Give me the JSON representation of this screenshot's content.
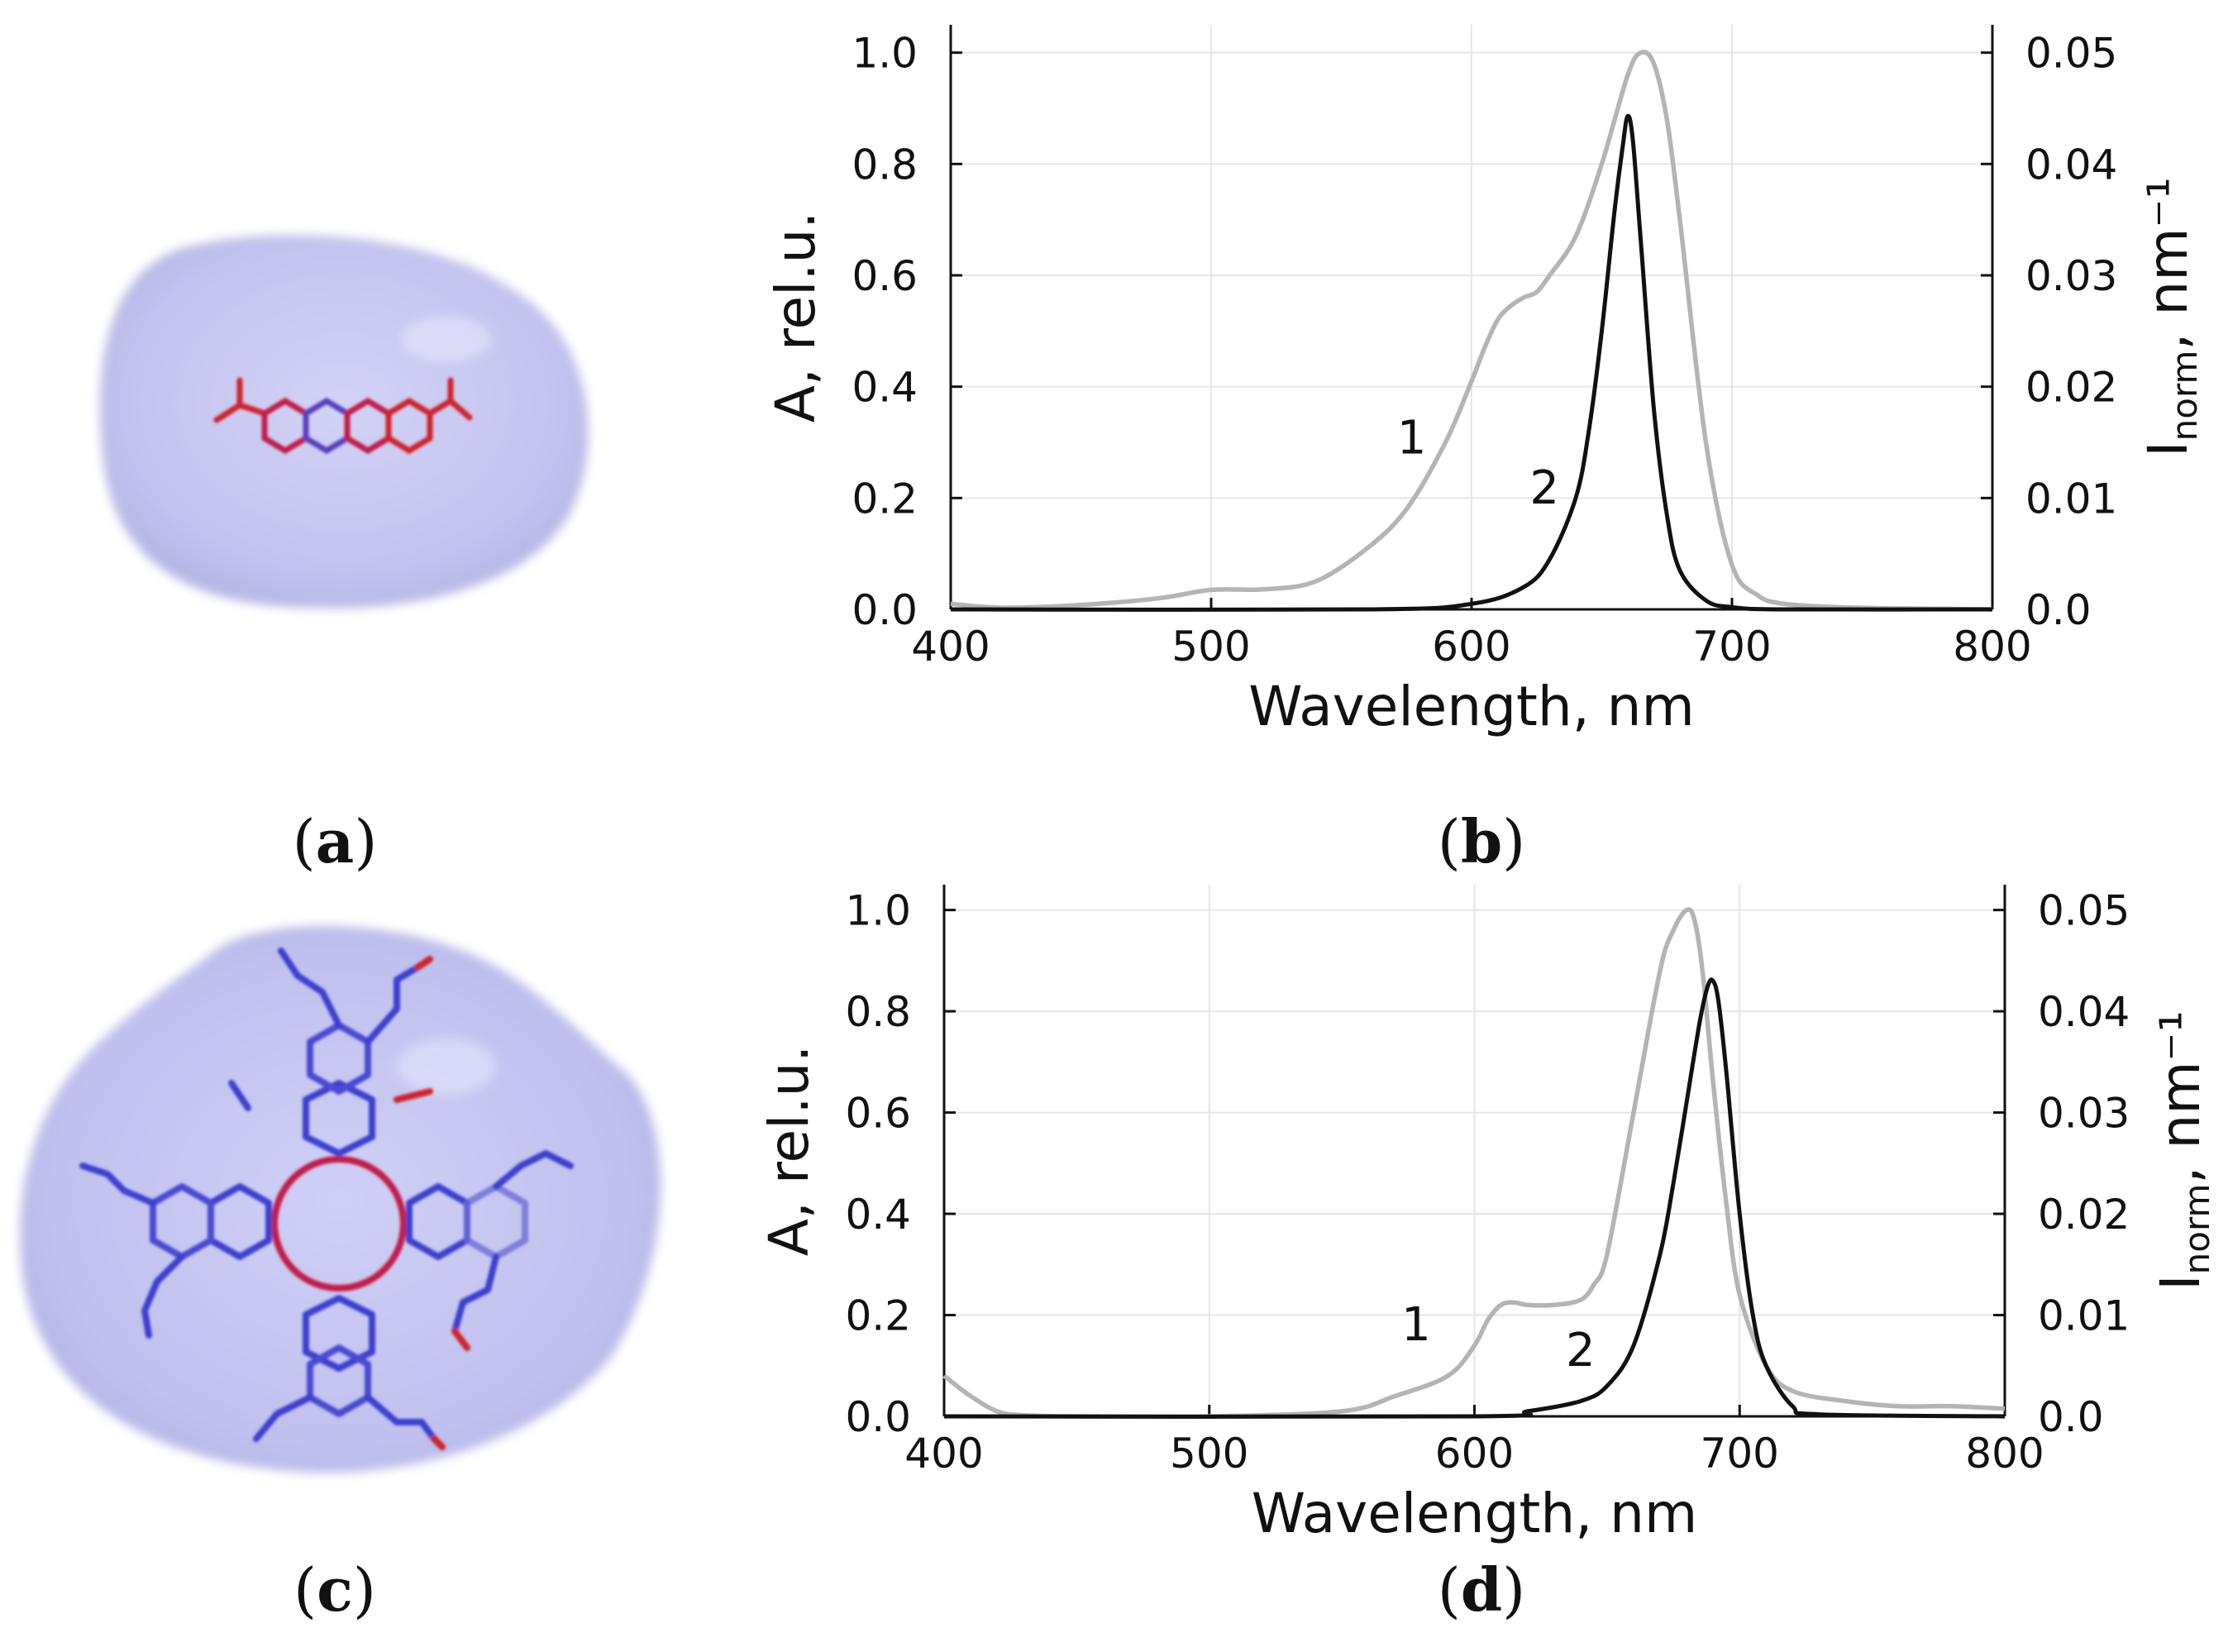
{
  "figure_labels": {
    "a": {
      "open": "(",
      "letter": "a",
      "close": ")"
    },
    "b": {
      "open": "(",
      "letter": "b",
      "close": ")"
    },
    "c": {
      "open": "(",
      "letter": "c",
      "close": ")"
    },
    "d": {
      "open": "(",
      "letter": "d",
      "close": ")"
    }
  },
  "colors": {
    "absorption": "#b4b4b4",
    "fluorescence": "#111111",
    "cloud": "#c9c9f2",
    "bond_blue": "#3d3fd0",
    "bond_red": "#d1202b"
  },
  "chart_data": [
    {
      "id": "b",
      "type": "line",
      "xlabel": "Wavelength, nm",
      "ylabel": "A, rel.u.",
      "y2label_main": "I",
      "y2label_sub": "norm",
      "y2label_tail": ", nm⁻¹",
      "xlim": [
        400,
        800
      ],
      "ylim": [
        0,
        1.05
      ],
      "y2lim": [
        0,
        0.0525
      ],
      "xticks": [
        400,
        500,
        600,
        700,
        800
      ],
      "yticks": [
        0.0,
        0.2,
        0.4,
        0.6,
        0.8,
        1.0
      ],
      "y2ticks": [
        0.0,
        0.01,
        0.02,
        0.03,
        0.04,
        0.05
      ],
      "xtick_labels": [
        "400",
        "500",
        "600",
        "700",
        "800"
      ],
      "ytick_labels": [
        "0.0",
        "0.2",
        "0.4",
        "0.6",
        "0.8",
        "1.0"
      ],
      "y2tick_labels": [
        "0.0",
        "0.01",
        "0.02",
        "0.03",
        "0.04",
        "0.05"
      ],
      "grid": true,
      "series": [
        {
          "label": "1",
          "axis": "left",
          "color": "#b4b4b4",
          "x": [
            400,
            420,
            450,
            480,
            500,
            520,
            540,
            560,
            575,
            590,
            600,
            605,
            610,
            615,
            620,
            625,
            630,
            640,
            650,
            660,
            665,
            670,
            675,
            680,
            690,
            700,
            710,
            720,
            740,
            760,
            800
          ],
          "y": [
            0.01,
            0.003,
            0.008,
            0.02,
            0.035,
            0.036,
            0.05,
            0.11,
            0.18,
            0.3,
            0.41,
            0.47,
            0.52,
            0.545,
            0.56,
            0.57,
            0.6,
            0.67,
            0.8,
            0.96,
            1.0,
            0.98,
            0.88,
            0.7,
            0.3,
            0.08,
            0.025,
            0.01,
            0.004,
            0.002,
            0.0
          ]
        },
        {
          "label": "2",
          "axis": "right",
          "color": "#111111",
          "x": [
            400,
            560,
            600,
            620,
            630,
            640,
            645,
            650,
            655,
            658,
            660,
            662,
            665,
            670,
            675,
            680,
            690,
            700,
            720,
            800
          ],
          "y": [
            0.0,
            0.0,
            0.0005,
            0.002,
            0.0045,
            0.01,
            0.016,
            0.025,
            0.036,
            0.0415,
            0.0443,
            0.042,
            0.033,
            0.018,
            0.0085,
            0.0035,
            0.0008,
            0.0002,
            0.0,
            0.0
          ]
        }
      ],
      "annotations": [
        {
          "text": "1",
          "x": 577,
          "y": 0.28
        },
        {
          "text": "2",
          "x": 628,
          "y": 0.19
        }
      ]
    },
    {
      "id": "d",
      "type": "line",
      "xlabel": "Wavelength, nm",
      "ylabel": "A, rel.u.",
      "y2label_main": "I",
      "y2label_sub": "norm",
      "y2label_tail": ", nm⁻¹",
      "xlim": [
        400,
        800
      ],
      "ylim": [
        0,
        1.05
      ],
      "y2lim": [
        0,
        0.0525
      ],
      "xticks": [
        400,
        500,
        600,
        700,
        800
      ],
      "yticks": [
        0.0,
        0.2,
        0.4,
        0.6,
        0.8,
        1.0
      ],
      "y2ticks": [
        0.0,
        0.01,
        0.02,
        0.03,
        0.04,
        0.05
      ],
      "xtick_labels": [
        "400",
        "500",
        "600",
        "700",
        "800"
      ],
      "ytick_labels": [
        "0.0",
        "0.2",
        "0.4",
        "0.6",
        "0.8",
        "1.0"
      ],
      "y2tick_labels": [
        "0.0",
        "0.01",
        "0.02",
        "0.03",
        "0.04",
        "0.05"
      ],
      "grid": true,
      "series": [
        {
          "label": "1",
          "axis": "left",
          "color": "#b4b4b4",
          "x": [
            400,
            410,
            420,
            430,
            450,
            500,
            550,
            570,
            590,
            600,
            605,
            610,
            615,
            620,
            630,
            640,
            645,
            650,
            660,
            670,
            675,
            680,
            683,
            686,
            690,
            695,
            700,
            710,
            720,
            740,
            760,
            780,
            800
          ],
          "y": [
            0.08,
            0.04,
            0.01,
            0.002,
            0.0,
            0.0,
            0.01,
            0.04,
            0.08,
            0.14,
            0.19,
            0.22,
            0.225,
            0.22,
            0.22,
            0.23,
            0.26,
            0.32,
            0.6,
            0.88,
            0.96,
            1.0,
            0.98,
            0.88,
            0.66,
            0.42,
            0.24,
            0.1,
            0.05,
            0.03,
            0.02,
            0.02,
            0.015
          ]
        },
        {
          "label": "2",
          "axis": "right",
          "color": "#111111",
          "x": [
            400,
            600,
            620,
            640,
            650,
            660,
            670,
            675,
            680,
            685,
            688,
            690,
            692,
            695,
            700,
            705,
            710,
            720,
            730,
            800
          ],
          "y": [
            0.0,
            0.0,
            0.0005,
            0.0015,
            0.003,
            0.007,
            0.016,
            0.023,
            0.031,
            0.039,
            0.0425,
            0.043,
            0.041,
            0.034,
            0.02,
            0.01,
            0.005,
            0.001,
            0.0002,
            0.0
          ]
        }
      ],
      "annotations": [
        {
          "text": "1",
          "x": 578,
          "y": 0.15
        },
        {
          "text": "2",
          "x": 640,
          "y": 0.1
        }
      ]
    }
  ]
}
